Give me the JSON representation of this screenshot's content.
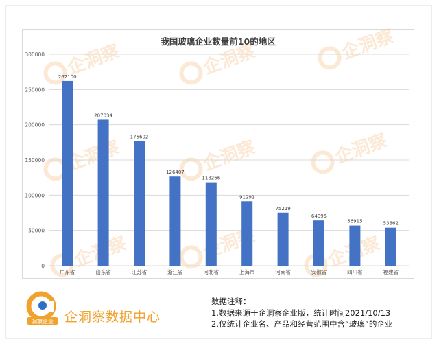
{
  "chart_data": {
    "type": "bar",
    "title": "我国玻璃企业数量前10的地区",
    "categories": [
      "广东省",
      "山东省",
      "江苏省",
      "浙江省",
      "河北省",
      "上海市",
      "河南省",
      "安徽省",
      "四川省",
      "福建省"
    ],
    "values": [
      262100,
      207034,
      176602,
      126407,
      118266,
      91291,
      75219,
      64095,
      56915,
      53862
    ],
    "ylim": [
      0,
      300000
    ],
    "yticks": [
      0,
      50000,
      100000,
      150000,
      200000,
      250000,
      300000
    ],
    "grid": true,
    "bar_color": "#4472c4",
    "xlabel": "",
    "ylabel": ""
  },
  "watermark": {
    "text": "企洞察",
    "color": "#f5c18a"
  },
  "brand": {
    "logo_text": "洞察企业",
    "name": "企洞察数据中心",
    "accent": "#f0a22f"
  },
  "notes": {
    "heading": "数据注释：",
    "lines": [
      "1.数据来源于企洞察企业版，统计时间2021/10/13",
      "2.仅统计企业名、产品和经营范围中含“玻璃”的企业"
    ]
  }
}
